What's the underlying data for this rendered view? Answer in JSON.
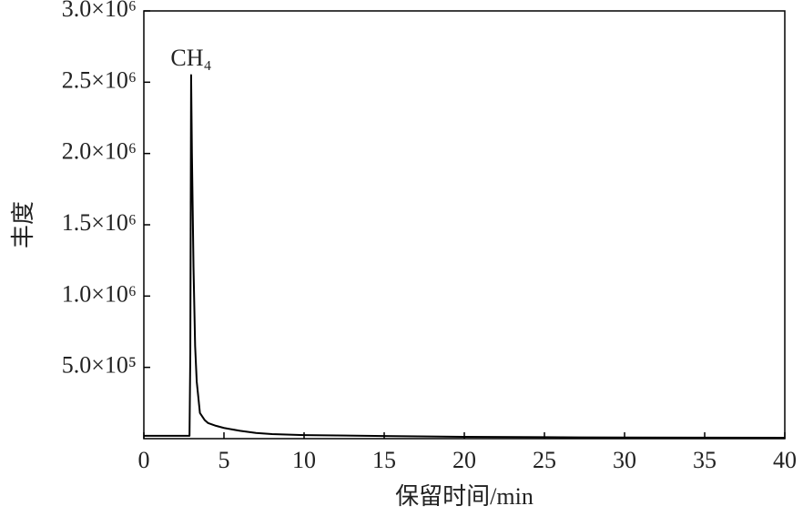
{
  "chart_data": {
    "type": "line",
    "x": [
      0,
      2.85,
      2.9,
      2.95,
      3.0,
      3.1,
      3.2,
      3.3,
      3.5,
      3.8,
      4,
      4.5,
      5,
      6,
      7,
      8,
      10,
      15,
      20,
      25,
      30,
      35,
      40
    ],
    "values": [
      20000,
      20000,
      600000,
      2550000,
      2000000,
      1200000,
      650000,
      400000,
      180000,
      130000,
      110000,
      90000,
      75000,
      55000,
      40000,
      32000,
      25000,
      18000,
      13000,
      10000,
      8000,
      7000,
      6000
    ],
    "color": "#000000",
    "xlabel": "保留时间/min",
    "ylabel": "丰度",
    "annotation": "CH₄",
    "xlim": [
      0,
      40
    ],
    "xticks": [
      0,
      5,
      10,
      15,
      20,
      25,
      30,
      35,
      40
    ],
    "ylim": [
      0,
      3000000
    ],
    "yticks": [
      {
        "value": 500000,
        "label": "5.0×10⁵"
      },
      {
        "value": 1000000,
        "label": "1.0×10⁶"
      },
      {
        "value": 1500000,
        "label": "1.5×10⁶"
      },
      {
        "value": 2000000,
        "label": "2.0×10⁶"
      },
      {
        "value": 2500000,
        "label": "2.5×10⁶"
      },
      {
        "value": 3000000,
        "label": "3.0×10⁶"
      }
    ],
    "grid": false
  }
}
